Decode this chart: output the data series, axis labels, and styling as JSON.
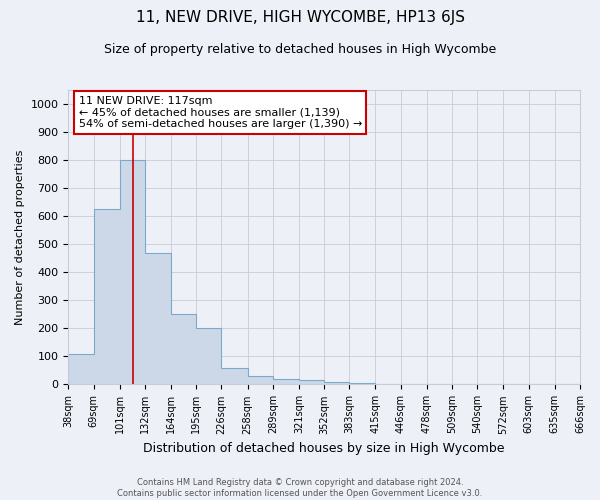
{
  "title": "11, NEW DRIVE, HIGH WYCOMBE, HP13 6JS",
  "subtitle": "Size of property relative to detached houses in High Wycombe",
  "xlabel": "Distribution of detached houses by size in High Wycombe",
  "ylabel": "Number of detached properties",
  "footer_line1": "Contains HM Land Registry data © Crown copyright and database right 2024.",
  "footer_line2": "Contains public sector information licensed under the Open Government Licence v3.0.",
  "bar_edges": [
    38,
    69,
    101,
    132,
    164,
    195,
    226,
    258,
    289,
    321,
    352,
    383,
    415,
    446,
    478,
    509,
    540,
    572,
    603,
    635,
    666
  ],
  "bar_heights": [
    110,
    625,
    800,
    470,
    250,
    200,
    60,
    30,
    20,
    15,
    10,
    5,
    0,
    0,
    0,
    0,
    0,
    0,
    0,
    0
  ],
  "bar_color": "#ccd8e8",
  "bar_edge_color": "#7aaac8",
  "red_line_x": 117,
  "annotation_line1": "11 NEW DRIVE: 117sqm",
  "annotation_line2": "← 45% of detached houses are smaller (1,139)",
  "annotation_line3": "54% of semi-detached houses are larger (1,390) →",
  "annotation_box_color": "#ffffff",
  "annotation_border_color": "#cc0000",
  "ylim": [
    0,
    1050
  ],
  "yticks": [
    0,
    100,
    200,
    300,
    400,
    500,
    600,
    700,
    800,
    900,
    1000
  ],
  "tick_labels": [
    "38sqm",
    "69sqm",
    "101sqm",
    "132sqm",
    "164sqm",
    "195sqm",
    "226sqm",
    "258sqm",
    "289sqm",
    "321sqm",
    "352sqm",
    "383sqm",
    "415sqm",
    "446sqm",
    "478sqm",
    "509sqm",
    "540sqm",
    "572sqm",
    "603sqm",
    "635sqm",
    "666sqm"
  ],
  "background_color": "#eef0f8",
  "grid_color": "#c8ccd8",
  "title_fontsize": 11,
  "subtitle_fontsize": 9,
  "tick_label_fontsize": 7,
  "ylabel_fontsize": 8,
  "xlabel_fontsize": 9,
  "footer_fontsize": 6,
  "annotation_fontsize": 8
}
